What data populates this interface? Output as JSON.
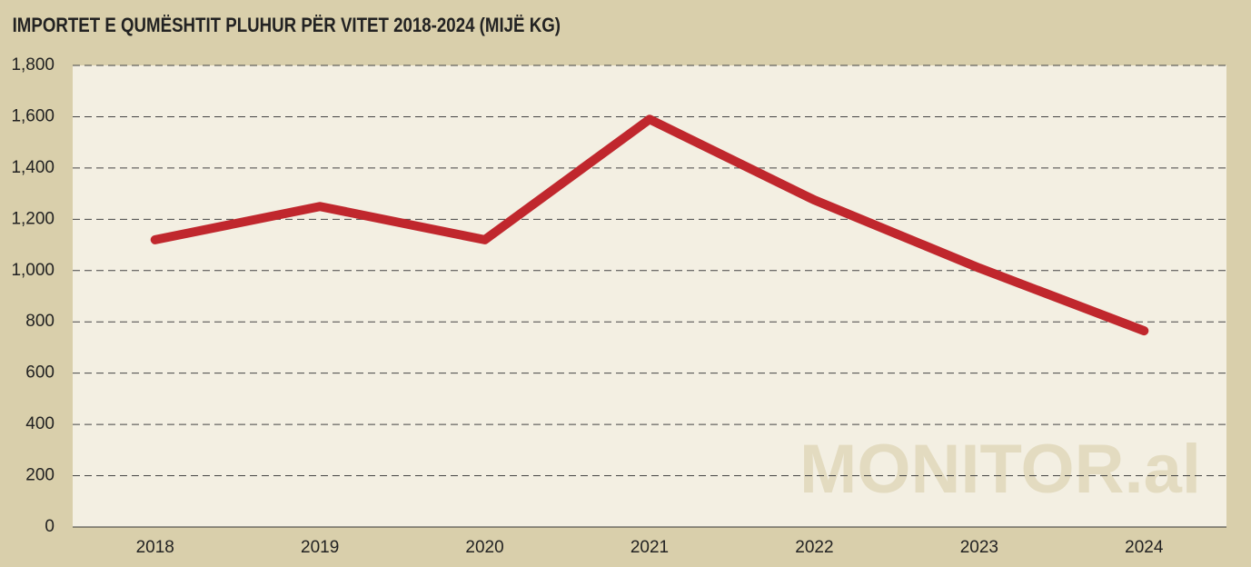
{
  "chart_data": {
    "type": "line",
    "title": "IMPORTET E QUMËSHTIT PLUHUR PËR VITET 2018-2024 (MIJË KG)",
    "watermark": "MONITOR.al",
    "categories": [
      "2018",
      "2019",
      "2020",
      "2021",
      "2022",
      "2023",
      "2024"
    ],
    "series": [
      {
        "name": "Importet",
        "color": "#c0272d",
        "values": [
          1120,
          1250,
          1120,
          1590,
          1275,
          1010,
          765
        ]
      }
    ],
    "ylim": [
      0,
      1800
    ],
    "yticks": [
      0,
      200,
      400,
      600,
      800,
      {
        "value": 1000,
        "label": "1,000"
      },
      {
        "value": 1200,
        "label": "1,200"
      },
      {
        "value": 1400,
        "label": "1,400"
      },
      {
        "value": 1600,
        "label": "1,600"
      },
      {
        "value": 1800,
        "label": "1,800"
      }
    ],
    "grid": true
  }
}
